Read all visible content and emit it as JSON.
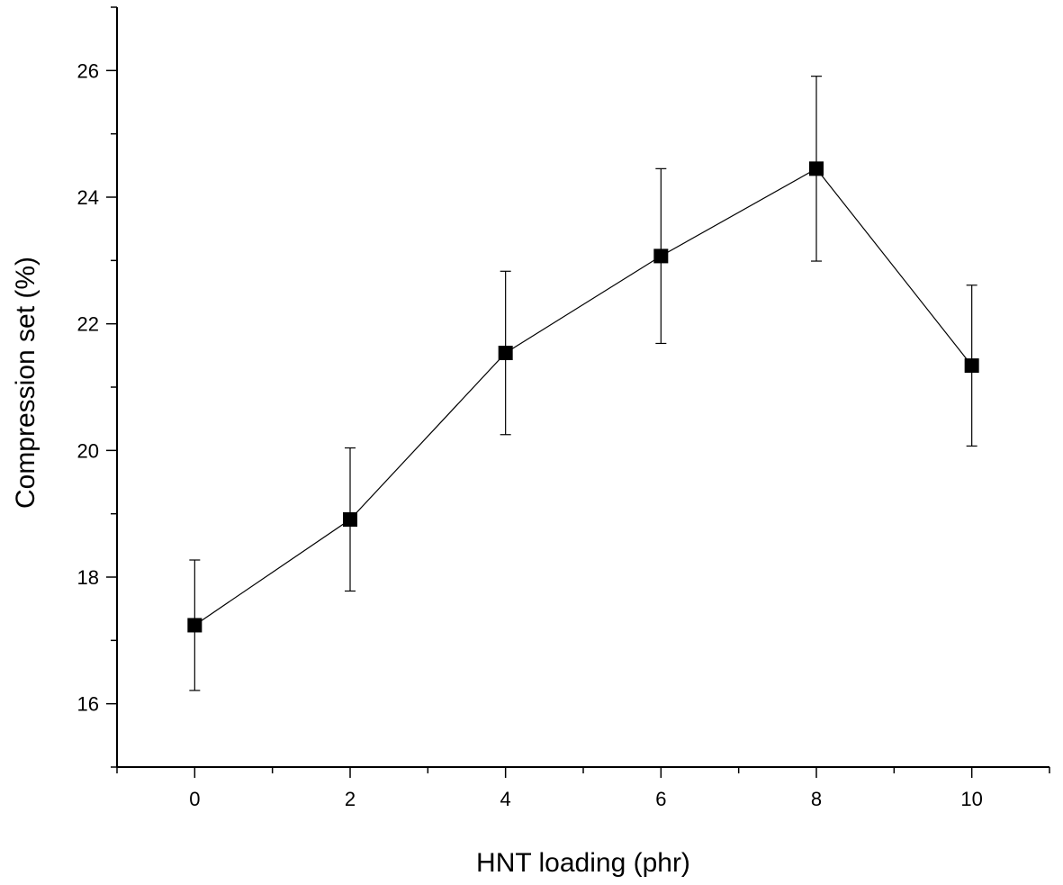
{
  "chart_data": {
    "type": "line",
    "title": "",
    "xlabel": "HNT loading (phr)",
    "ylabel": "Compression set (%)",
    "xlim": [
      -1,
      11
    ],
    "ylim": [
      15,
      27
    ],
    "x_ticks": [
      0,
      2,
      4,
      6,
      8,
      10
    ],
    "x_tick_labels": [
      "0",
      "2",
      "4",
      "6",
      "8",
      "10"
    ],
    "y_ticks": [
      16,
      18,
      20,
      22,
      24,
      26
    ],
    "y_tick_labels": [
      "16",
      "18",
      "20",
      "22",
      "24",
      "26"
    ],
    "grid": false,
    "legend": null,
    "series": [
      {
        "name": "Compression set",
        "marker": "square",
        "color": "#000000",
        "x": [
          0,
          2,
          4,
          6,
          8,
          10
        ],
        "y": [
          17.24,
          18.91,
          21.54,
          23.07,
          24.45,
          21.34
        ],
        "error": [
          1.03,
          1.13,
          1.29,
          1.38,
          1.46,
          1.27
        ]
      }
    ]
  }
}
